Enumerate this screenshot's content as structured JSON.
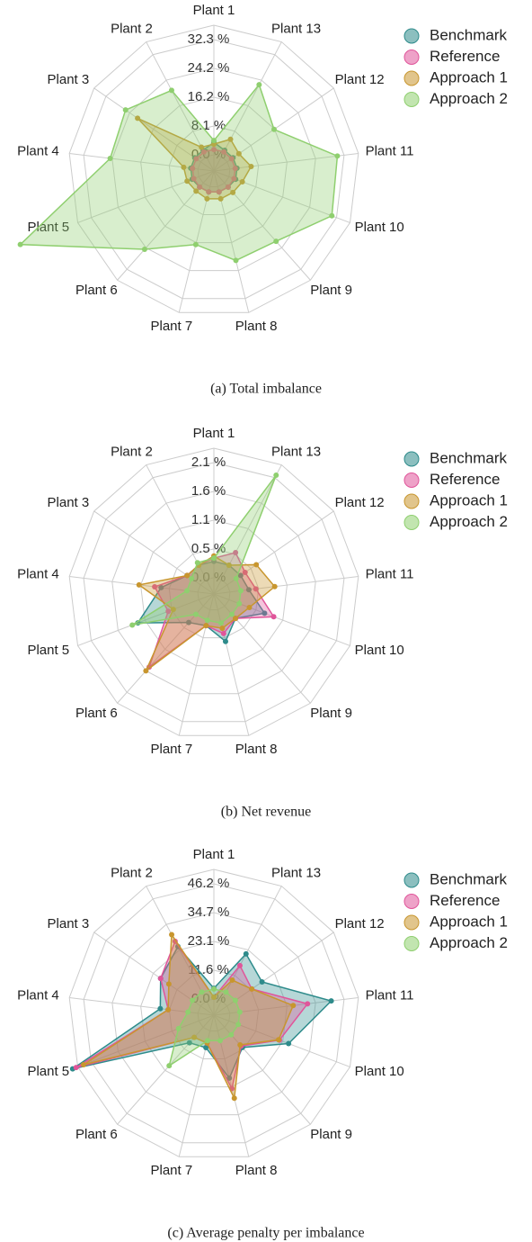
{
  "chart_data": [
    {
      "type": "radar",
      "caption": "(a) Total imbalance",
      "categories": [
        "Plant 1",
        "Plant 2",
        "Plant 3",
        "Plant 4",
        "Plant 5",
        "Plant 6",
        "Plant 7",
        "Plant 8",
        "Plant 9",
        "Plant 10",
        "Plant 11",
        "Plant 12",
        "Plant 13"
      ],
      "ylim": [
        -4.54,
        36.35
      ],
      "yticks": [
        {
          "value": 0,
          "label": "0.0 %"
        },
        {
          "value": 8.08,
          "label": "8.1 %"
        },
        {
          "value": 16.15,
          "label": "16.2 %"
        },
        {
          "value": 24.23,
          "label": "24.2 %"
        },
        {
          "value": 32.3,
          "label": "32.3 %"
        }
      ],
      "series": [
        {
          "name": "Benchmark",
          "color": "#2e8b8b",
          "values": [
            3.5,
            2,
            2,
            2,
            2,
            1.5,
            1.5,
            1.5,
            1.5,
            2,
            2,
            2,
            2
          ]
        },
        {
          "name": "Reference",
          "color": "#e0559a",
          "values": [
            1.5,
            1.5,
            1.5,
            1.5,
            1.5,
            1.5,
            1.5,
            1.5,
            1.5,
            1.5,
            1.5,
            1.5,
            1.5
          ]
        },
        {
          "name": "Approach 1",
          "color": "#c8962e",
          "values": [
            3,
            3,
            21.5,
            4,
            3.5,
            3,
            3.5,
            3.5,
            3.5,
            4,
            6,
            4,
            5.5
          ]
        },
        {
          "name": "Approach 2",
          "color": "#8fcf6f",
          "values": [
            4,
            21,
            25.6,
            24.8,
            53.6,
            24.8,
            16.7,
            21.3,
            21.8,
            30.9,
            30.4,
            16,
            22.8
          ]
        }
      ]
    },
    {
      "type": "radar",
      "caption": "(b) Net revenue",
      "categories": [
        "Plant 1",
        "Plant 2",
        "Plant 3",
        "Plant 4",
        "Plant 5",
        "Plant 6",
        "Plant 7",
        "Plant 8",
        "Plant 9",
        "Plant 10",
        "Plant 11",
        "Plant 12",
        "Plant 13"
      ],
      "ylim": [
        -0.3,
        2.385
      ],
      "yticks": [
        {
          "value": 0,
          "label": "0.0 %"
        },
        {
          "value": 0.53,
          "label": "0.5 %"
        },
        {
          "value": 1.06,
          "label": "1.1 %"
        },
        {
          "value": 1.59,
          "label": "1.6 %"
        },
        {
          "value": 2.12,
          "label": "2.1 %"
        }
      ],
      "series": [
        {
          "name": "Benchmark",
          "color": "#2e8b8b",
          "values": [
            0.3,
            0.3,
            0.3,
            0.68,
            1.2,
            0.4,
            0.3,
            0.6,
            0.3,
            0.7,
            0.35,
            0.3,
            0.3
          ]
        },
        {
          "name": "Reference",
          "color": "#e0559a",
          "values": [
            0.36,
            0.3,
            0.3,
            0.8,
            0.6,
            1.5,
            0.3,
            0.45,
            0.3,
            0.88,
            0.48,
            0.4,
            0.56
          ]
        },
        {
          "name": "Approach 1",
          "color": "#c8962e",
          "values": [
            0.4,
            0.3,
            0.3,
            1.09,
            0.5,
            1.59,
            0.3,
            0.35,
            0.3,
            0.4,
            0.83,
            0.65,
            0.3
          ]
        },
        {
          "name": "Approach 2",
          "color": "#8fcf6f",
          "values": [
            0.36,
            0.35,
            0.2,
            0.2,
            1.31,
            0.2,
            0.2,
            0.25,
            0.2,
            0.2,
            0.2,
            0.2,
            2.17
          ]
        }
      ]
    },
    {
      "type": "radar",
      "caption": "(c) Average penalty per imbalance",
      "categories": [
        "Plant 1",
        "Plant 2",
        "Plant 3",
        "Plant 4",
        "Plant 5",
        "Plant 6",
        "Plant 7",
        "Plant 8",
        "Plant 9",
        "Plant 10",
        "Plant 11",
        "Plant 12",
        "Plant 13"
      ],
      "ylim": [
        -6.5,
        52
      ],
      "yticks": [
        {
          "value": 0,
          "label": "0.0 %"
        },
        {
          "value": 11.55,
          "label": "11.6 %"
        },
        {
          "value": 23.1,
          "label": "23.1 %"
        },
        {
          "value": 34.65,
          "label": "34.7 %"
        },
        {
          "value": 46.2,
          "label": "46.2 %"
        }
      ],
      "series": [
        {
          "name": "Benchmark",
          "color": "#2e8b8b",
          "values": [
            4.3,
            24.6,
            19.5,
            15.2,
            54.2,
            8.3,
            6.9,
            19.5,
            10.8,
            25.6,
            41,
            17,
            21.3
          ]
        },
        {
          "name": "Reference",
          "color": "#e0559a",
          "values": [
            0.7,
            27,
            19.5,
            12,
            52.7,
            5.4,
            5,
            23.8,
            10,
            21.7,
            31.4,
            12,
            16
          ]
        },
        {
          "name": "Approach 1",
          "color": "#c8962e",
          "values": [
            0.7,
            30,
            15.5,
            12,
            49.5,
            5.4,
            5,
            27.8,
            9.4,
            21.3,
            25.6,
            12,
            9.4
          ]
        },
        {
          "name": "Approach 2",
          "color": "#8fcf6f",
          "values": [
            4,
            4,
            4,
            4,
            8.7,
            20.6,
            4,
            4,
            4,
            4,
            4,
            4,
            4
          ]
        }
      ]
    }
  ]
}
